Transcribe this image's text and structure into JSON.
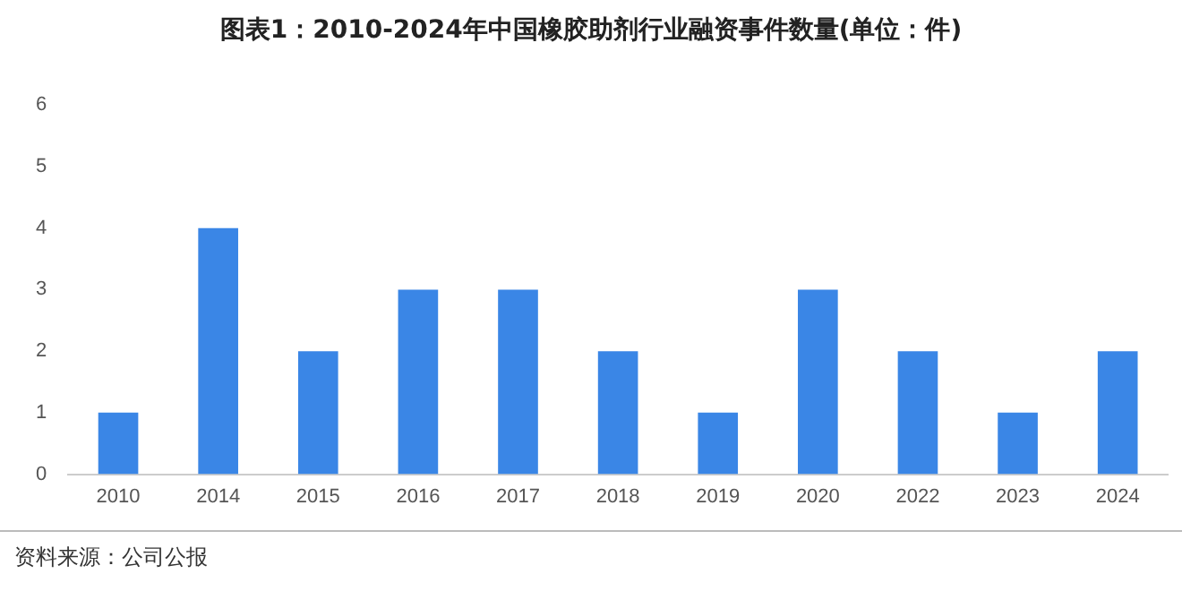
{
  "chart_data": {
    "type": "bar",
    "title": "图表1：2010-2024年中国橡胶助剂行业融资事件数量(单位：件)",
    "categories": [
      "2010",
      "2014",
      "2015",
      "2016",
      "2017",
      "2018",
      "2019",
      "2020",
      "2022",
      "2023",
      "2024"
    ],
    "values": [
      1,
      4,
      2,
      3,
      3,
      2,
      1,
      3,
      2,
      1,
      2
    ],
    "color": "#3a86e6",
    "ylim": [
      0,
      6
    ],
    "yticks": [
      0,
      1,
      2,
      3,
      4,
      5,
      6
    ],
    "grid": false,
    "annotations": [
      "资料来源：公司公报"
    ]
  }
}
